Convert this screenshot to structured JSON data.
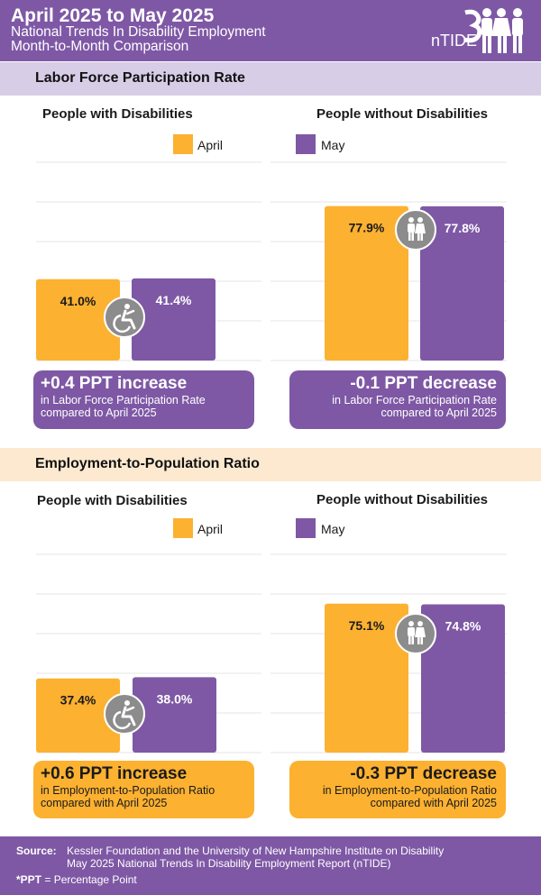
{
  "header": {
    "title": "April 2025 to May 2025",
    "subtitle_line1": "National Trends In Disability Employment",
    "subtitle_line2": "Month-to-Month Comparison",
    "logo_text": "nTIDE"
  },
  "colors": {
    "april": "#fcb131",
    "may": "#7e58a5",
    "icon_circle": "#8c8c8c",
    "grid": "#e4e4e4"
  },
  "legend": {
    "april": "April",
    "may": "May"
  },
  "sections": [
    {
      "title": "Labor Force Participation Rate",
      "groups": [
        {
          "title": "People with Disabilities",
          "icon": "wheelchair-icon",
          "callout_big": "+0.4 PPT  increase",
          "callout_line1": "in Labor Force Participation Rate",
          "callout_line2": "compared to April 2025"
        },
        {
          "title": "People without Disabilities",
          "icon": "people-icon",
          "callout_big": "-0.1 PPT  decrease",
          "callout_line1": "in Labor Force Participation Rate",
          "callout_line2": "compared to April 2025"
        }
      ]
    },
    {
      "title": "Employment-to-Population Ratio",
      "groups": [
        {
          "title": "People with Disabilities",
          "icon": "wheelchair-icon",
          "callout_big": "+0.6 PPT  increase",
          "callout_line1": "in Employment-to-Population Ratio",
          "callout_line2": "compared with April 2025"
        },
        {
          "title": "People without Disabilities",
          "icon": "people-icon",
          "callout_big": "-0.3 PPT  decrease",
          "callout_line1": "in Employment-to-Population Ratio",
          "callout_line2": "compared with April 2025"
        }
      ]
    }
  ],
  "chart_data": [
    {
      "type": "bar",
      "title": "Labor Force Participation Rate",
      "group": "People with Disabilities",
      "categories": [
        "April",
        "May"
      ],
      "values": [
        41.0,
        41.4
      ],
      "labels": [
        "41.0%",
        "41.4%"
      ],
      "ylim": [
        0,
        100
      ]
    },
    {
      "type": "bar",
      "title": "Labor Force Participation Rate",
      "group": "People without Disabilities",
      "categories": [
        "April",
        "May"
      ],
      "values": [
        77.9,
        77.8
      ],
      "labels": [
        "77.9%",
        "77.8%"
      ],
      "ylim": [
        0,
        100
      ]
    },
    {
      "type": "bar",
      "title": "Employment-to-Population Ratio",
      "group": "People with Disabilities",
      "categories": [
        "April",
        "May"
      ],
      "values": [
        37.4,
        38.0
      ],
      "labels": [
        "37.4%",
        "38.0%"
      ],
      "ylim": [
        0,
        100
      ]
    },
    {
      "type": "bar",
      "title": "Employment-to-Population Ratio",
      "group": "People without Disabilities",
      "categories": [
        "April",
        "May"
      ],
      "values": [
        75.1,
        74.8
      ],
      "labels": [
        "75.1%",
        "74.8%"
      ],
      "ylim": [
        0,
        100
      ]
    }
  ],
  "footer": {
    "source_label": "Source:",
    "source_line1": "Kessler Foundation and the University of New Hampshire Institute on Disability",
    "source_line2": "May 2025 National Trends In Disability Employment Report (nTIDE)",
    "note_bold": "*PPT",
    "note_rest": " = Percentage Point"
  }
}
